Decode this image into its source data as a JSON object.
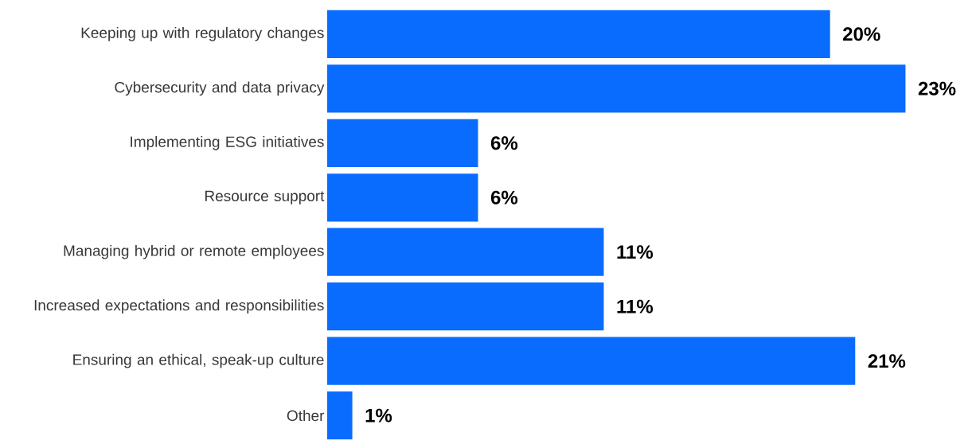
{
  "chart_data": {
    "type": "bar",
    "orientation": "horizontal",
    "categories": [
      "Keeping up with regulatory changes",
      "Cybersecurity and data privacy",
      "Implementing ESG initiatives",
      "Resource support",
      "Managing hybrid or remote employees",
      "Increased expectations and responsibilities",
      "Ensuring an ethical, speak-up culture",
      "Other"
    ],
    "values": [
      20,
      23,
      6,
      6,
      11,
      11,
      21,
      1
    ],
    "value_labels": [
      "20%",
      "23%",
      "6%",
      "6%",
      "11%",
      "11%",
      "21%",
      "1%"
    ],
    "color": "#0a6cff"
  }
}
